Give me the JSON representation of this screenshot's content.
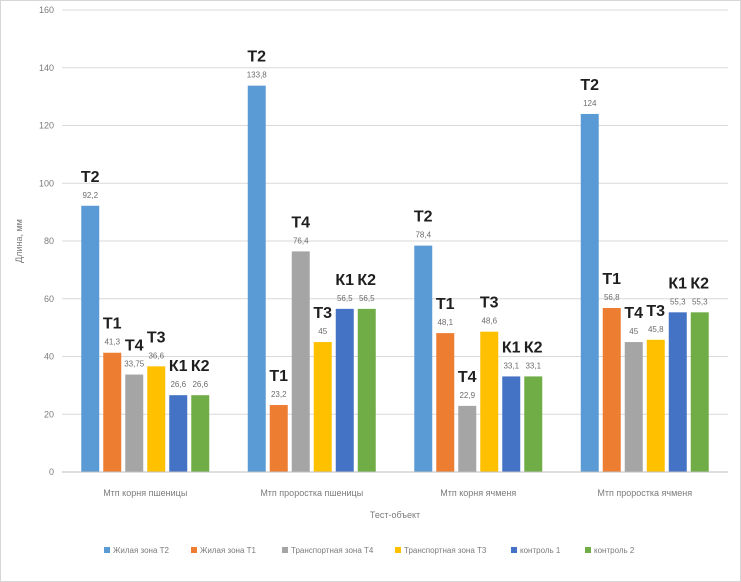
{
  "chart_data": {
    "type": "bar",
    "title": "",
    "xlabel": "Тест-объект",
    "ylabel": "Длина, мм",
    "ylim": [
      0,
      160
    ],
    "yticks": [
      0,
      20,
      40,
      60,
      80,
      100,
      120,
      140,
      160
    ],
    "categories": [
      "Мтп корня пшеницы",
      "Мтп проростка пшеницы",
      "Мтп корня ячменя",
      "Мтп проростка ячменя"
    ],
    "legend_position": "bottom",
    "series": [
      {
        "name": "Жилая зона Т2",
        "color": "#5b9bd5",
        "values": [
          92.2,
          133.8,
          78.4,
          124
        ],
        "labels": [
          "92,2",
          "133,8",
          "78,4",
          "124"
        ],
        "tags": [
          "Т2",
          "Т2",
          "Т2",
          "Т2"
        ]
      },
      {
        "name": "Жилая зона Т1",
        "color": "#ed7d31",
        "values": [
          41.3,
          23.2,
          48.1,
          56.8
        ],
        "labels": [
          "41,3",
          "23,2",
          "48,1",
          "56,8"
        ],
        "tags": [
          "Т1",
          "Т1",
          "Т1",
          "Т1"
        ]
      },
      {
        "name": "Транспортная зона Т4",
        "color": "#a5a5a5",
        "values": [
          33.75,
          76.4,
          22.9,
          45
        ],
        "labels": [
          "33,75",
          "76,4",
          "22,9",
          "45"
        ],
        "tags": [
          "Т4",
          "Т4",
          "Т4",
          "Т4"
        ]
      },
      {
        "name": "Транспортная зона Т3",
        "color": "#ffc000",
        "values": [
          36.6,
          45,
          48.6,
          45.8
        ],
        "labels": [
          "36,6",
          "45",
          "48,6",
          "45,8"
        ],
        "tags": [
          "Т3",
          "Т3",
          "Т3",
          "Т3"
        ]
      },
      {
        "name": "контроль 1",
        "color": "#4472c4",
        "values": [
          26.6,
          56.5,
          33.1,
          55.3
        ],
        "labels": [
          "26,6",
          "56,5",
          "33,1",
          "55,3"
        ],
        "tags": [
          "К1",
          "К1",
          "К1",
          "К1"
        ]
      },
      {
        "name": "контроль 2",
        "color": "#70ad47",
        "values": [
          26.6,
          56.5,
          33.1,
          55.3
        ],
        "labels": [
          "26,6",
          "56,5",
          "33,1",
          "55,3"
        ],
        "tags": [
          "К2",
          "К2",
          "К2",
          "К2"
        ]
      }
    ]
  }
}
